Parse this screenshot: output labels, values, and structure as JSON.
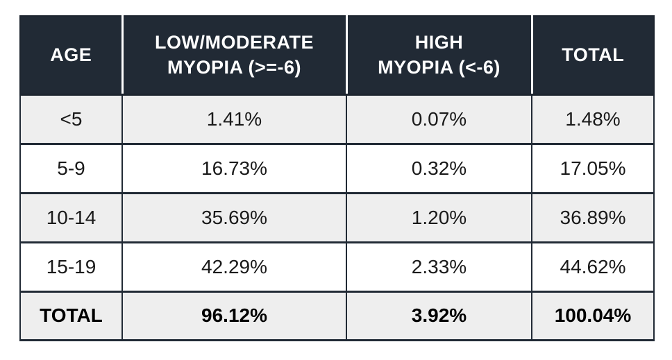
{
  "header": {
    "age": "AGE",
    "low_moderate": "LOW/MODERATE\nMYOPIA (>=-6)",
    "high": "HIGH\nMYOPIA (<-6)",
    "total": "TOTAL"
  },
  "colors": {
    "header_bg": "#212a35",
    "header_text": "#ffffff",
    "border": "#1c242e",
    "stripe_bg": "#eeeeee",
    "row_bg": "#ffffff",
    "body_text": "#1a1a1a"
  },
  "chart_data": {
    "type": "table",
    "columns": [
      "AGE",
      "LOW/MODERATE MYOPIA (>=-6)",
      "HIGH MYOPIA (<-6)",
      "TOTAL"
    ],
    "rows": [
      [
        "<5",
        "1.41%",
        "0.07%",
        "1.48%"
      ],
      [
        "5-9",
        "16.73%",
        "0.32%",
        "17.05%"
      ],
      [
        "10-14",
        "35.69%",
        "1.20%",
        "36.89%"
      ],
      [
        "15-19",
        "42.29%",
        "2.33%",
        "44.62%"
      ],
      [
        "TOTAL",
        "96.12%",
        "3.92%",
        "100.04%"
      ]
    ],
    "layout_hints": {
      "striped_rows": [
        0,
        2,
        4
      ],
      "bold_rows": [
        4
      ],
      "header_style": "dark-bg-white-text"
    }
  }
}
